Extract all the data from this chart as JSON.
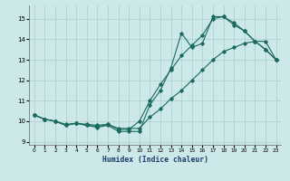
{
  "xlabel": "Humidex (Indice chaleur)",
  "bg_color": "#cce8e8",
  "grid_color": "#aacece",
  "line_color": "#1a6a60",
  "xlim": [
    -0.5,
    23.5
  ],
  "ylim": [
    8.85,
    15.65
  ],
  "yticks": [
    9,
    10,
    11,
    12,
    13,
    14,
    15
  ],
  "xticks": [
    0,
    1,
    2,
    3,
    4,
    5,
    6,
    7,
    8,
    9,
    10,
    11,
    12,
    13,
    14,
    15,
    16,
    17,
    18,
    19,
    20,
    21,
    22,
    23
  ],
  "line1_x": [
    0,
    1,
    2,
    3,
    4,
    5,
    6,
    7,
    8,
    9,
    10,
    11,
    12,
    13,
    14,
    15,
    16,
    17,
    18,
    19,
    20,
    21,
    22,
    23
  ],
  "line1_y": [
    10.3,
    10.1,
    10.0,
    9.8,
    9.9,
    9.8,
    9.7,
    9.8,
    9.5,
    9.5,
    9.5,
    10.8,
    11.5,
    12.6,
    14.3,
    13.6,
    13.8,
    15.1,
    15.1,
    14.8,
    14.4,
    13.9,
    13.9,
    13.0
  ],
  "line2_x": [
    0,
    1,
    2,
    3,
    4,
    5,
    6,
    7,
    8,
    9,
    10,
    11,
    12,
    13,
    14,
    15,
    16,
    17,
    18,
    19,
    20,
    21,
    22,
    23
  ],
  "line2_y": [
    10.3,
    10.1,
    10.0,
    9.85,
    9.9,
    9.85,
    9.8,
    9.85,
    9.65,
    9.65,
    9.65,
    10.2,
    10.6,
    11.1,
    11.5,
    12.0,
    12.5,
    13.0,
    13.4,
    13.6,
    13.8,
    13.9,
    13.5,
    13.0
  ],
  "line3_x": [
    0,
    1,
    2,
    3,
    4,
    5,
    6,
    7,
    8,
    9,
    10,
    11,
    12,
    13,
    14,
    15,
    16,
    17,
    18,
    19,
    20,
    21,
    22,
    23
  ],
  "line3_y": [
    10.3,
    10.1,
    10.0,
    9.8,
    9.9,
    9.8,
    9.75,
    9.85,
    9.6,
    9.6,
    10.0,
    11.0,
    11.8,
    12.5,
    13.2,
    13.7,
    14.2,
    15.0,
    15.1,
    14.7,
    14.4,
    13.9,
    13.5,
    13.0
  ]
}
